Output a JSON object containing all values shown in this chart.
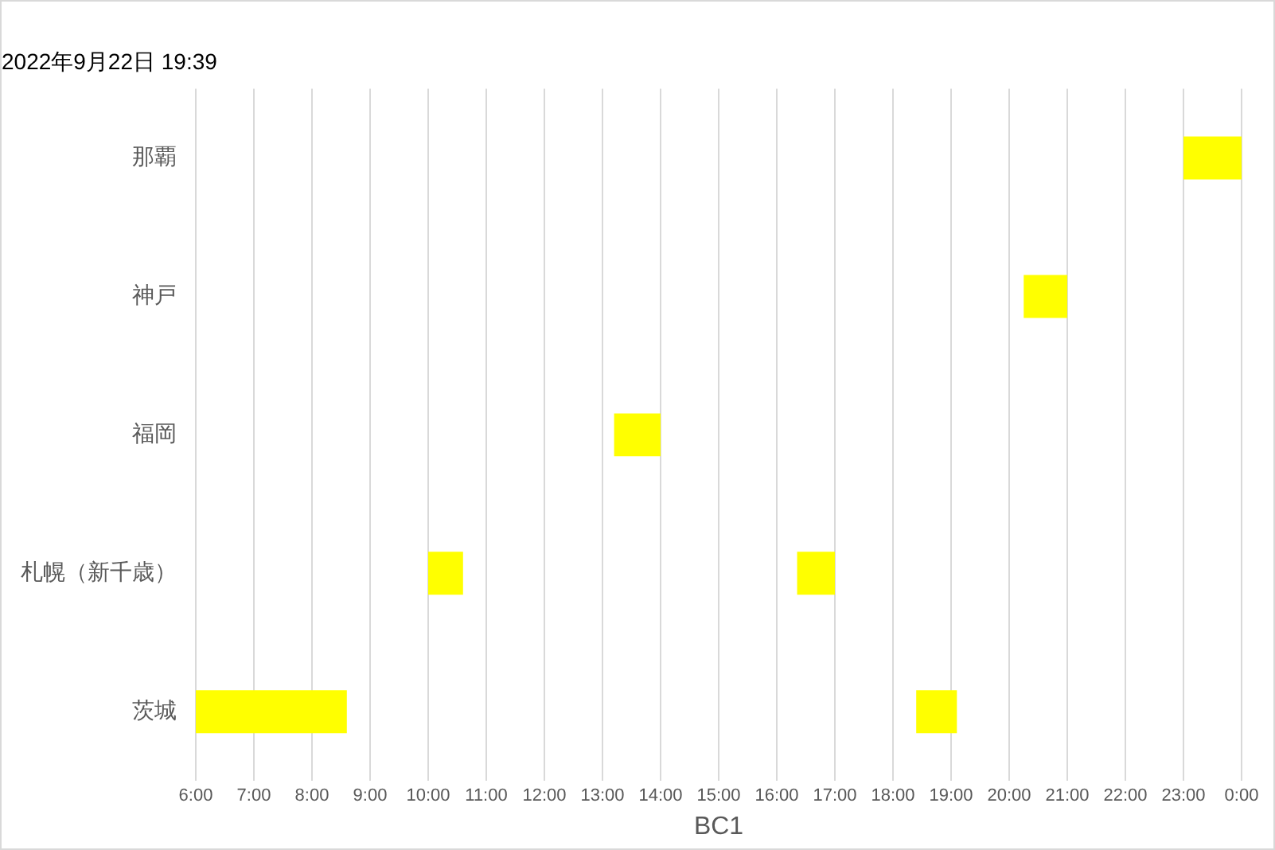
{
  "chart_data": {
    "type": "bar",
    "orientation": "horizontal",
    "title": "2022年9月22日 19:39",
    "xlabel": "BC1",
    "categories": [
      "那覇",
      "神戸",
      "福岡",
      "札幌（新千歳）",
      "茨城"
    ],
    "series": [
      {
        "color": "#ffff00",
        "values": [
          1,
          0.75,
          0.8,
          0.6,
          2.6
        ],
        "base": [
          23,
          20.25,
          13.2,
          10,
          6
        ]
      },
      {
        "color": "#ffff00",
        "values": [
          null,
          null,
          null,
          0.65,
          0.7
        ],
        "base": [
          null,
          null,
          null,
          16.35,
          18.4
        ]
      }
    ],
    "xlim": [
      6,
      24
    ],
    "xticks": [
      {
        "value": 6,
        "label": "6:00"
      },
      {
        "value": 7,
        "label": "7:00"
      },
      {
        "value": 8,
        "label": "8:00"
      },
      {
        "value": 9,
        "label": "9:00"
      },
      {
        "value": 10,
        "label": "10:00"
      },
      {
        "value": 11,
        "label": "11:00"
      },
      {
        "value": 12,
        "label": "12:00"
      },
      {
        "value": 13,
        "label": "13:00"
      },
      {
        "value": 14,
        "label": "14:00"
      },
      {
        "value": 15,
        "label": "15:00"
      },
      {
        "value": 16,
        "label": "16:00"
      },
      {
        "value": 17,
        "label": "17:00"
      },
      {
        "value": 18,
        "label": "18:00"
      },
      {
        "value": 19,
        "label": "19:00"
      },
      {
        "value": 20,
        "label": "20:00"
      },
      {
        "value": 21,
        "label": "21:00"
      },
      {
        "value": 22,
        "label": "22:00"
      },
      {
        "value": 23,
        "label": "23:00"
      },
      {
        "value": 24,
        "label": "0:00"
      }
    ],
    "grid": "x",
    "legend": false
  }
}
